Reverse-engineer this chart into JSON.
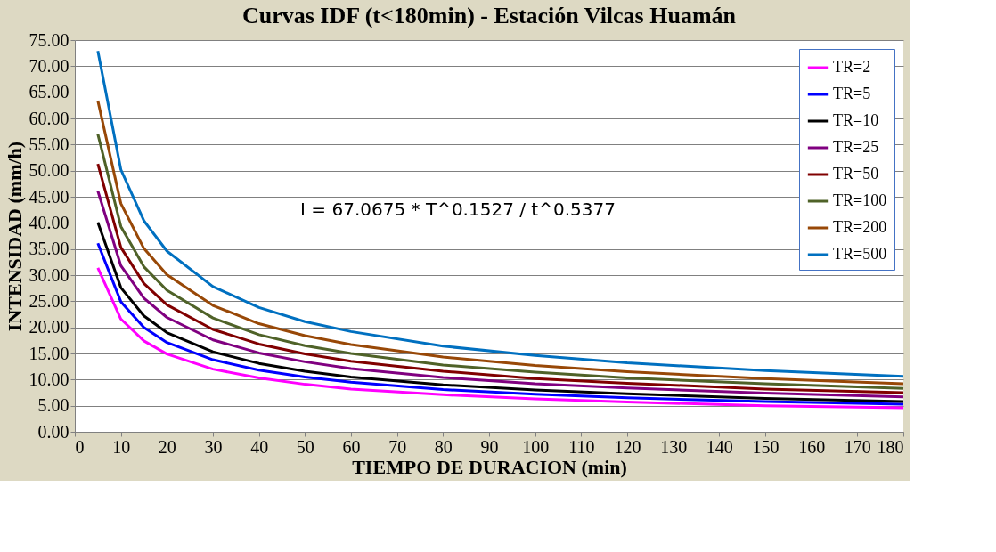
{
  "chart_data": {
    "type": "line",
    "title": "Curvas IDF (t<180min) - Estación Vilcas Huamán",
    "xlabel": "TIEMPO DE DURACION (min)",
    "ylabel": "INTENSIDAD (mm/h)",
    "x": [
      5,
      10,
      15,
      20,
      30,
      40,
      50,
      60,
      80,
      100,
      120,
      150,
      180
    ],
    "series": [
      {
        "name": "TR=2",
        "color": "#ff00ff",
        "values": [
          31.4,
          21.6,
          17.4,
          14.9,
          12.0,
          10.3,
          9.1,
          8.2,
          7.1,
          6.3,
          5.7,
          5.0,
          4.6
        ]
      },
      {
        "name": "TR=5",
        "color": "#0000ff",
        "values": [
          36.1,
          24.9,
          20.0,
          17.1,
          13.8,
          11.8,
          10.5,
          9.5,
          8.1,
          7.2,
          6.5,
          5.8,
          5.3
        ]
      },
      {
        "name": "TR=10",
        "color": "#000000",
        "values": [
          40.1,
          27.6,
          22.2,
          19.0,
          15.3,
          13.1,
          11.6,
          10.5,
          9.0,
          8.0,
          7.3,
          6.4,
          5.8
        ]
      },
      {
        "name": "TR=25",
        "color": "#800080",
        "values": [
          46.1,
          31.8,
          25.6,
          21.9,
          17.6,
          15.1,
          13.4,
          12.1,
          10.4,
          9.2,
          8.4,
          7.4,
          6.7
        ]
      },
      {
        "name": "TR=50",
        "color": "#800000",
        "values": [
          51.3,
          35.3,
          28.4,
          24.3,
          19.6,
          16.8,
          14.9,
          13.5,
          11.6,
          10.2,
          9.3,
          8.2,
          7.5
        ]
      },
      {
        "name": "TR=100",
        "color": "#4f6228",
        "values": [
          57.0,
          39.3,
          31.6,
          27.1,
          21.8,
          18.6,
          16.5,
          15.0,
          12.8,
          11.4,
          10.3,
          9.2,
          8.3
        ]
      },
      {
        "name": "TR=200",
        "color": "#984807",
        "values": [
          63.4,
          43.7,
          35.1,
          30.1,
          24.2,
          20.7,
          18.4,
          16.7,
          14.3,
          12.7,
          11.5,
          10.2,
          9.2
        ]
      },
      {
        "name": "TR=500",
        "color": "#0070c0",
        "values": [
          72.9,
          50.2,
          40.4,
          34.6,
          27.8,
          23.8,
          21.1,
          19.2,
          16.4,
          14.6,
          13.2,
          11.7,
          10.6
        ]
      }
    ],
    "xlim": [
      0,
      180
    ],
    "xticks": [
      0,
      10,
      20,
      30,
      40,
      50,
      60,
      70,
      80,
      90,
      100,
      110,
      120,
      130,
      140,
      150,
      160,
      170,
      180
    ],
    "ylim": [
      0,
      75
    ],
    "yticks": [
      {
        "value": 0,
        "label": "0.00"
      },
      {
        "value": 5,
        "label": "5.00"
      },
      {
        "value": 10,
        "label": "10.00"
      },
      {
        "value": 15,
        "label": "15.00"
      },
      {
        "value": 20,
        "label": "20.00"
      },
      {
        "value": 25,
        "label": "25.00"
      },
      {
        "value": 30,
        "label": "30.00"
      },
      {
        "value": 35,
        "label": "35.00"
      },
      {
        "value": 40,
        "label": "40.00"
      },
      {
        "value": 45,
        "label": "45.00"
      },
      {
        "value": 50,
        "label": "50.00"
      },
      {
        "value": 55,
        "label": "55.00"
      },
      {
        "value": 60,
        "label": "60.00"
      },
      {
        "value": 65,
        "label": "65.00"
      },
      {
        "value": 70,
        "label": "70.00"
      },
      {
        "value": 75,
        "label": "75.00"
      }
    ],
    "annotations": [
      "I = 67.0675 * T^0.1527 / t^0.5377"
    ],
    "grid": "y",
    "legend": "top right",
    "marker": "none",
    "line_style": "solid"
  }
}
